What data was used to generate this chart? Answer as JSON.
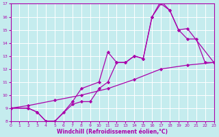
{
  "xlabel": "Windchill (Refroidissement éolien,°C)",
  "xlim": [
    0,
    23
  ],
  "ylim": [
    8,
    17
  ],
  "xticks": [
    0,
    1,
    2,
    3,
    4,
    5,
    6,
    7,
    8,
    9,
    10,
    11,
    12,
    13,
    14,
    15,
    16,
    17,
    18,
    19,
    20,
    21,
    22,
    23
  ],
  "yticks": [
    8,
    9,
    10,
    11,
    12,
    13,
    14,
    15,
    16,
    17
  ],
  "bg_color": "#c5ecee",
  "line_color": "#aa00aa",
  "grid_color": "#ffffff",
  "line1_x": [
    0,
    2,
    3,
    4,
    5,
    6,
    7,
    8,
    10,
    11,
    12,
    13,
    14,
    15,
    16,
    17,
    18,
    19,
    20,
    21,
    22,
    23
  ],
  "line1_y": [
    9,
    9,
    8.7,
    8.0,
    8.0,
    8.7,
    9.5,
    10.5,
    11.0,
    13.3,
    12.5,
    12.5,
    13.0,
    12.8,
    16.0,
    17.0,
    16.5,
    15.0,
    14.3,
    14.3,
    12.5,
    12.5
  ],
  "line2_x": [
    0,
    2,
    3,
    4,
    5,
    7,
    8,
    9,
    10,
    11,
    12,
    13,
    14,
    15,
    16,
    17,
    18,
    19,
    20,
    23
  ],
  "line2_y": [
    9,
    9,
    8.7,
    8.0,
    8.0,
    9.3,
    9.5,
    9.5,
    10.5,
    11.0,
    12.5,
    12.5,
    13.0,
    12.8,
    16.0,
    17.2,
    16.5,
    15.0,
    15.1,
    12.5
  ],
  "line3_x": [
    0,
    2,
    5,
    8,
    11,
    14,
    17,
    20,
    23
  ],
  "line3_y": [
    9.0,
    9.2,
    9.6,
    10.0,
    10.5,
    11.2,
    12.0,
    12.3,
    12.5
  ]
}
